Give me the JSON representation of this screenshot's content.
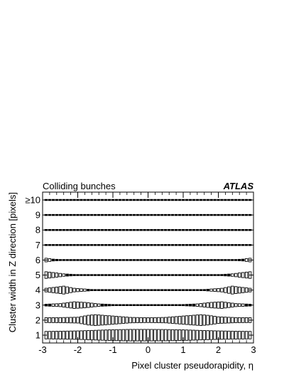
{
  "chart_data": {
    "type": "box",
    "label_left": "Colliding bunches",
    "label_right": "ATLAS",
    "xlabel": "Pixel cluster pseudorapidity, η",
    "ylabel": "Cluster width in Z direction [pixels]",
    "xlim": [
      -3,
      3
    ],
    "x_ticks": [
      -3,
      -2,
      -1,
      0,
      1,
      2,
      3
    ],
    "y_categories": [
      "1",
      "2",
      "3",
      "4",
      "5",
      "6",
      "7",
      "8",
      "9",
      "≥10"
    ],
    "box_bins": {
      "start": -2.9,
      "end": 2.9,
      "step": 0.1
    },
    "note": "Each row shows, per pseudorapidity bin, a box whose height is proportional to the relative frequency of that cluster width.",
    "rows": [
      {
        "width": "1",
        "profile": [
          [
            -2.9,
            0.62
          ],
          [
            -2.5,
            0.65
          ],
          [
            -2.0,
            0.7
          ],
          [
            -1.5,
            0.8
          ],
          [
            -1.0,
            0.9
          ],
          [
            -0.5,
            0.95
          ],
          [
            0.0,
            0.95
          ],
          [
            0.5,
            0.93
          ],
          [
            1.0,
            0.88
          ],
          [
            1.5,
            0.78
          ],
          [
            2.0,
            0.7
          ],
          [
            2.5,
            0.65
          ],
          [
            2.9,
            0.62
          ]
        ]
      },
      {
        "width": "2",
        "profile": [
          [
            -2.9,
            0.4
          ],
          [
            -2.5,
            0.42
          ],
          [
            -2.0,
            0.48
          ],
          [
            -1.7,
            0.8
          ],
          [
            -1.5,
            0.9
          ],
          [
            -1.0,
            0.68
          ],
          [
            -0.5,
            0.45
          ],
          [
            0.0,
            0.4
          ],
          [
            0.5,
            0.45
          ],
          [
            1.0,
            0.68
          ],
          [
            1.5,
            0.9
          ],
          [
            1.7,
            0.8
          ],
          [
            2.0,
            0.55
          ],
          [
            2.5,
            0.42
          ],
          [
            2.9,
            0.4
          ]
        ]
      },
      {
        "width": "3",
        "profile": [
          [
            -2.9,
            0.15
          ],
          [
            -2.5,
            0.25
          ],
          [
            -2.1,
            0.55
          ],
          [
            -1.8,
            0.45
          ],
          [
            -1.4,
            0.2
          ],
          [
            -1.0,
            0.1
          ],
          [
            0.0,
            0.05
          ],
          [
            1.0,
            0.1
          ],
          [
            1.4,
            0.2
          ],
          [
            1.8,
            0.45
          ],
          [
            2.1,
            0.55
          ],
          [
            2.5,
            0.25
          ],
          [
            2.9,
            0.15
          ]
        ]
      },
      {
        "width": "4",
        "profile": [
          [
            -2.9,
            0.3
          ],
          [
            -2.6,
            0.5
          ],
          [
            -2.4,
            0.65
          ],
          [
            -2.1,
            0.3
          ],
          [
            -1.5,
            0.06
          ],
          [
            0.0,
            0.03
          ],
          [
            1.5,
            0.06
          ],
          [
            2.1,
            0.3
          ],
          [
            2.4,
            0.65
          ],
          [
            2.6,
            0.5
          ],
          [
            2.9,
            0.3
          ]
        ]
      },
      {
        "width": "5",
        "profile": [
          [
            -2.9,
            0.55
          ],
          [
            -2.7,
            0.42
          ],
          [
            -2.4,
            0.2
          ],
          [
            -2.0,
            0.07
          ],
          [
            0.0,
            0.03
          ],
          [
            2.0,
            0.07
          ],
          [
            2.4,
            0.2
          ],
          [
            2.7,
            0.42
          ],
          [
            2.9,
            0.55
          ]
        ]
      },
      {
        "width": "6",
        "profile": [
          [
            -2.9,
            0.3
          ],
          [
            -2.7,
            0.15
          ],
          [
            -2.4,
            0.06
          ],
          [
            0.0,
            0.03
          ],
          [
            2.4,
            0.06
          ],
          [
            2.7,
            0.15
          ],
          [
            2.9,
            0.3
          ]
        ]
      },
      {
        "width": "7",
        "profile": [
          [
            -2.9,
            0.05
          ],
          [
            0.0,
            0.03
          ],
          [
            2.9,
            0.05
          ]
        ]
      },
      {
        "width": "8",
        "profile": [
          [
            -2.9,
            0.04
          ],
          [
            0.0,
            0.03
          ],
          [
            2.9,
            0.04
          ]
        ]
      },
      {
        "width": "9",
        "profile": [
          [
            -2.9,
            0.04
          ],
          [
            0.0,
            0.03
          ],
          [
            2.9,
            0.04
          ]
        ]
      },
      {
        "width": "≥10",
        "profile": [
          [
            -2.9,
            0.04
          ],
          [
            0.0,
            0.03
          ],
          [
            2.9,
            0.04
          ]
        ]
      }
    ]
  }
}
